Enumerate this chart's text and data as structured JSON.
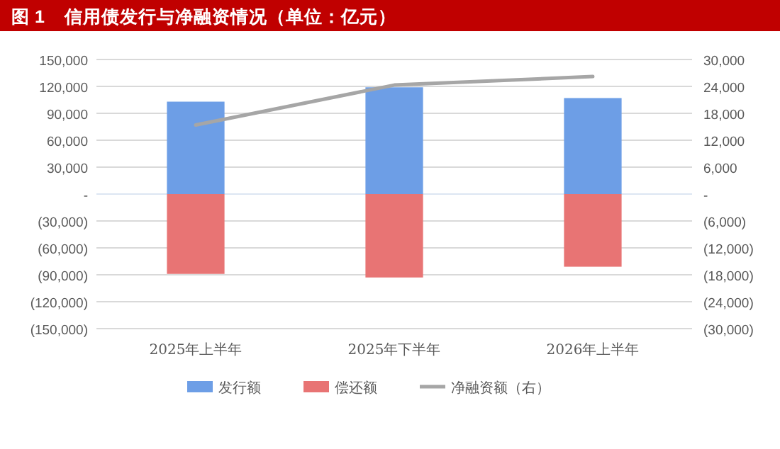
{
  "chart_data": {
    "type": "bar",
    "title": "图 1    信用债发行与净融资情况（单位：亿元）",
    "categories": [
      "2025年上半年",
      "2025年下半年",
      "2026年上半年"
    ],
    "stacked": true,
    "series": [
      {
        "name": "发行额",
        "color": "#6d9ee6",
        "values": [
          103000,
          119000,
          107000
        ]
      },
      {
        "name": "偿还额",
        "color": "#e87474",
        "values": [
          -89000,
          -93000,
          -81000
        ]
      },
      {
        "name": "净融资额（右）",
        "type": "line",
        "axis": "y2",
        "color": "#a6a6a6",
        "values": [
          15400,
          24300,
          26200
        ]
      }
    ],
    "ylim": [
      -150000,
      150000
    ],
    "yticks": [
      {
        "value": -150000,
        "label": "(150,000)"
      },
      {
        "value": -120000,
        "label": "(120,000)"
      },
      {
        "value": -90000,
        "label": "(90,000)"
      },
      {
        "value": -60000,
        "label": "(60,000)"
      },
      {
        "value": -30000,
        "label": "(30,000)"
      },
      {
        "value": 0,
        "label": "-"
      },
      {
        "value": 30000,
        "label": "30,000"
      },
      {
        "value": 60000,
        "label": "60,000"
      },
      {
        "value": 90000,
        "label": "90,000"
      },
      {
        "value": 120000,
        "label": "120,000"
      },
      {
        "value": 150000,
        "label": "150,000"
      }
    ],
    "y2lim": [
      -30000,
      30000
    ],
    "y2ticks": [
      {
        "value": -30000,
        "label": "(30,000)"
      },
      {
        "value": -24000,
        "label": "(24,000)"
      },
      {
        "value": -18000,
        "label": "(18,000)"
      },
      {
        "value": -12000,
        "label": "(12,000)"
      },
      {
        "value": -6000,
        "label": "(6,000)"
      },
      {
        "value": 0,
        "label": "-"
      },
      {
        "value": 6000,
        "label": "6,000"
      },
      {
        "value": 12000,
        "label": "12,000"
      },
      {
        "value": 18000,
        "label": "18,000"
      },
      {
        "value": 24000,
        "label": "24,000"
      },
      {
        "value": 30000,
        "label": "30,000"
      }
    ],
    "grid": "y",
    "legend": "bottom"
  }
}
